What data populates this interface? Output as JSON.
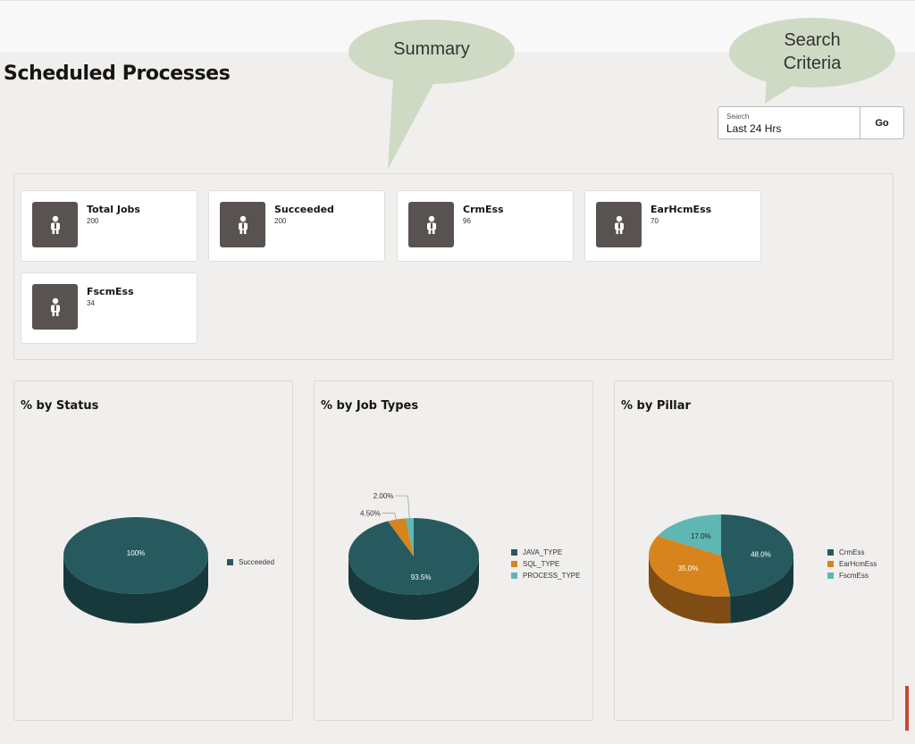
{
  "page": {
    "title": "Scheduled Processes"
  },
  "callouts": {
    "summary": "Summary",
    "search_line1": "Search",
    "search_line2": "Criteria"
  },
  "search": {
    "label": "Search",
    "value": "Last 24 Hrs",
    "go_label": "Go"
  },
  "summary_cards": [
    {
      "title": "Total Jobs",
      "count": "200",
      "icon": "person-icon"
    },
    {
      "title": "Succeeded",
      "count": "200",
      "icon": "person-icon"
    },
    {
      "title": "CrmEss",
      "count": "96",
      "icon": "person-icon"
    },
    {
      "title": "EarHcmEss",
      "count": "70",
      "icon": "person-icon"
    },
    {
      "title": "FscmEss",
      "count": "34",
      "icon": "person-icon"
    }
  ],
  "colors": {
    "teal": "#265a5f",
    "teal_side": "#17393c",
    "orange": "#d7841f",
    "orange_side": "#7f4d13",
    "aqua": "#5fb7b3",
    "aqua_side": "#3b7774"
  },
  "chart_data": [
    {
      "type": "pie",
      "title": "% by Status",
      "legend_position": "right",
      "slices": [
        {
          "label": "Succeeded",
          "value": 100,
          "display": "100%"
        }
      ]
    },
    {
      "type": "pie",
      "title": "% by Job Types",
      "legend_position": "right",
      "slices": [
        {
          "label": "JAVA_TYPE",
          "value": 93.5,
          "display": "93.5%"
        },
        {
          "label": "SQL_TYPE",
          "value": 4.5,
          "display": "4.50%"
        },
        {
          "label": "PROCESS_TYPE",
          "value": 2.0,
          "display": "2.00%"
        }
      ]
    },
    {
      "type": "pie",
      "title": "% by Pillar",
      "legend_position": "right",
      "slices": [
        {
          "label": "CrmEss",
          "value": 48.0,
          "display": "48.0%"
        },
        {
          "label": "EarHcmEss",
          "value": 35.0,
          "display": "35.0%"
        },
        {
          "label": "FscmEss",
          "value": 17.0,
          "display": "17.0%"
        }
      ]
    }
  ]
}
